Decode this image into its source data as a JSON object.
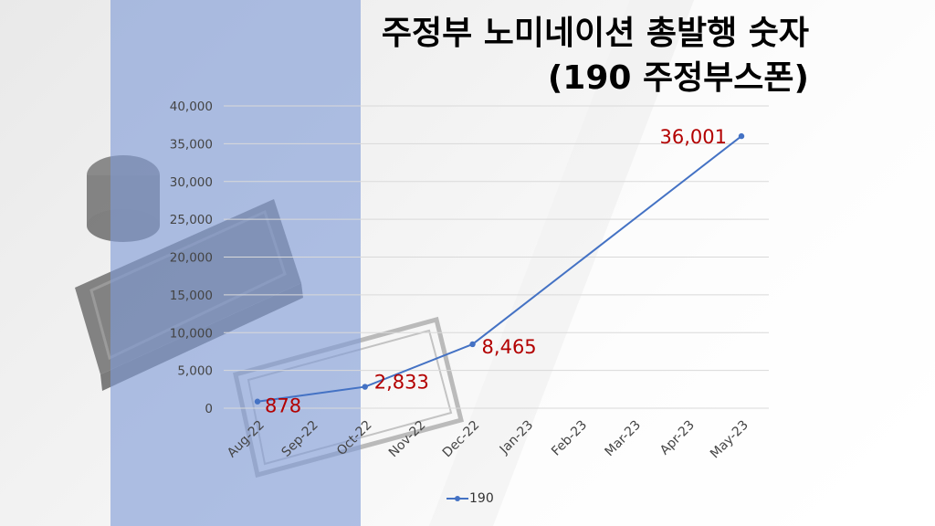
{
  "title": {
    "line1": "주정부 노미네이션 총발행 숫자",
    "line2": "(190 주정부스폰)"
  },
  "colors": {
    "series": "#4472C4",
    "data_label": "#B30000",
    "band": "#7F9BD6",
    "gridline": "#D9D9D9"
  },
  "chart_data": {
    "type": "line",
    "categories": [
      "Aug-22",
      "Sep-22",
      "Oct-22",
      "Nov-22",
      "Dec-22",
      "Jan-23",
      "Feb-23",
      "Mar-23",
      "Apr-23",
      "May-23"
    ],
    "series": [
      {
        "name": "190",
        "values": [
          878,
          null,
          2833,
          null,
          8465,
          null,
          null,
          null,
          null,
          36001
        ]
      }
    ],
    "data_labels": [
      "878",
      "",
      "2,833",
      "",
      "8,465",
      "",
      "",
      "",
      "",
      "36,001"
    ],
    "connect_gaps": true,
    "ylim": [
      0,
      40000
    ],
    "yticks": [
      0,
      5000,
      10000,
      15000,
      20000,
      25000,
      30000,
      35000,
      40000
    ],
    "ytick_labels": [
      "0",
      "5,000",
      "10,000",
      "15,000",
      "20,000",
      "25,000",
      "30,000",
      "35,000",
      "40,000"
    ],
    "grid": true,
    "legend": "bottom",
    "xtick_rotation": -45
  }
}
